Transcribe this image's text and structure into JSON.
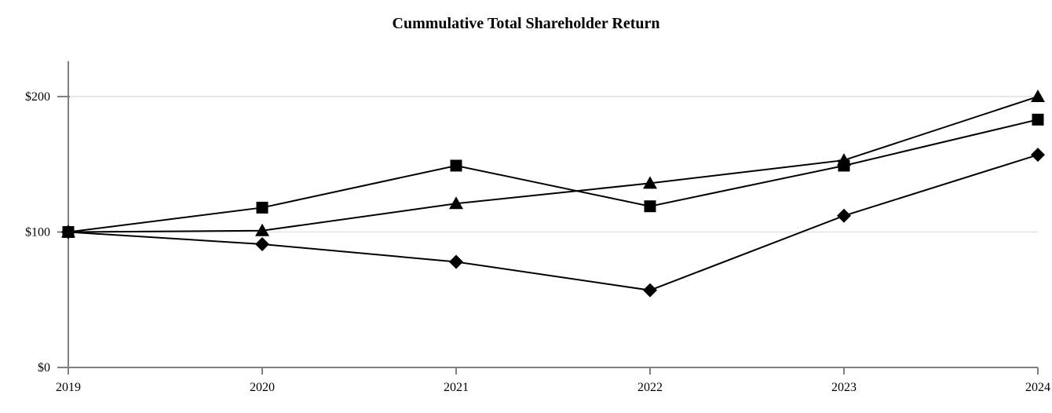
{
  "title": "Cummulative Total Shareholder Return",
  "colors": {
    "series_line": "#000000",
    "axis": "#808080",
    "gridline": "#e8e8e8",
    "background": "#ffffff",
    "text": "#000000"
  },
  "chart_data": {
    "type": "line",
    "title": "Cummulative Total Shareholder Return",
    "xlabel": "",
    "ylabel": "",
    "categories": [
      "2019",
      "2020",
      "2021",
      "2022",
      "2023",
      "2024"
    ],
    "series": [
      {
        "name": "diamond-series",
        "marker": "diamond",
        "color": "#000000",
        "values": [
          100,
          91,
          78,
          57,
          112,
          157
        ]
      },
      {
        "name": "triangle-series",
        "marker": "triangle",
        "color": "#000000",
        "values": [
          100,
          101,
          121,
          136,
          153,
          200
        ]
      },
      {
        "name": "square-series",
        "marker": "square",
        "color": "#000000",
        "values": [
          100,
          118,
          149,
          119,
          149,
          183
        ]
      }
    ],
    "y_ticks": [
      {
        "value": 0,
        "label": "$0"
      },
      {
        "value": 100,
        "label": "$100"
      },
      {
        "value": 200,
        "label": "$200"
      }
    ],
    "ylim": [
      0,
      226
    ],
    "grid": "horizontal",
    "legend": "none"
  }
}
